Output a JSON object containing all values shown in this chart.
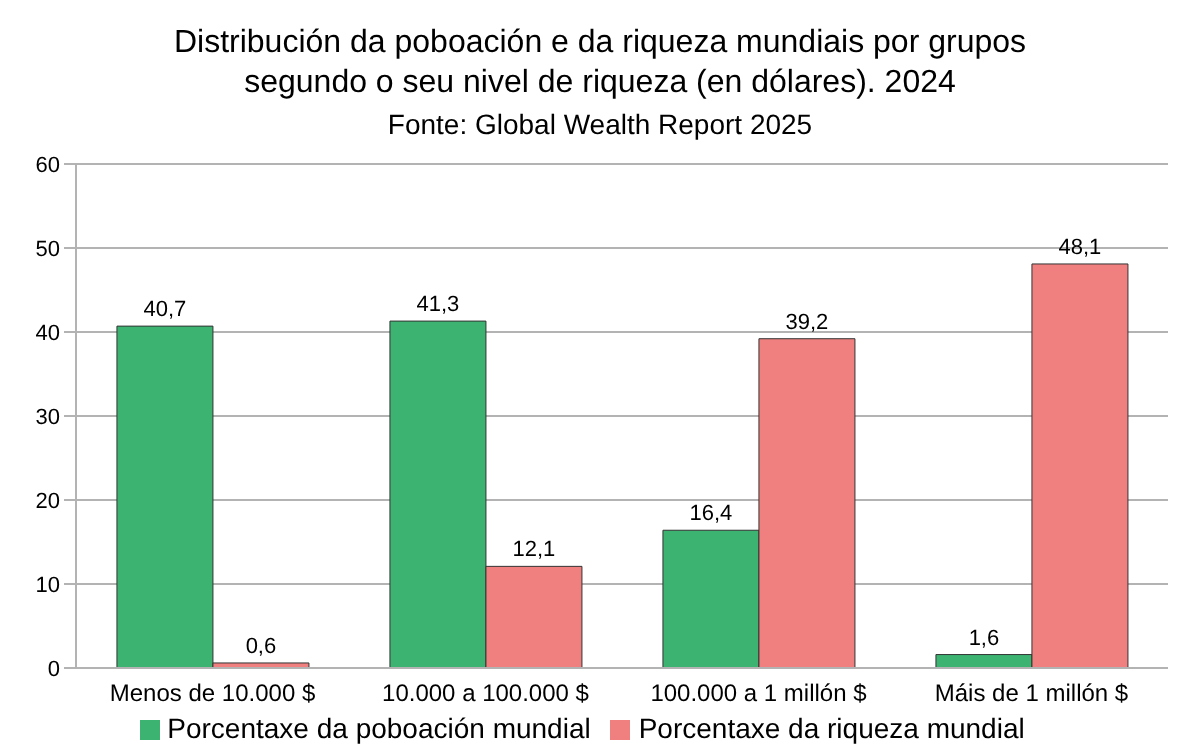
{
  "chart_data": {
    "type": "bar",
    "title": "Distribución da poboación e da riqueza mundiais por grupos segundo o seu nivel de riqueza (en dólares). 2024",
    "subtitle": "Fonte: Global Wealth Report 2025",
    "categories": [
      "Menos de 10.000 $",
      "10.000 a 100.000 $",
      "100.000 a 1 millón $",
      "Máis de 1 millón $"
    ],
    "series": [
      {
        "name": "Porcentaxe da poboación mundial",
        "color": "#3cb371",
        "values": [
          40.7,
          41.3,
          16.4,
          1.6
        ],
        "value_labels": [
          "40,7",
          "41,3",
          "16,4",
          "1,6"
        ]
      },
      {
        "name": "Porcentaxe da riqueza mundial",
        "color": "#f08080",
        "values": [
          0.6,
          12.1,
          39.2,
          48.1
        ],
        "value_labels": [
          "0,6",
          "12,1",
          "39,2",
          "48,1"
        ]
      }
    ],
    "ylim": [
      0,
      60
    ],
    "yticks": [
      0,
      10,
      20,
      30,
      40,
      50,
      60
    ],
    "grid": "y",
    "legend": "bottom"
  }
}
